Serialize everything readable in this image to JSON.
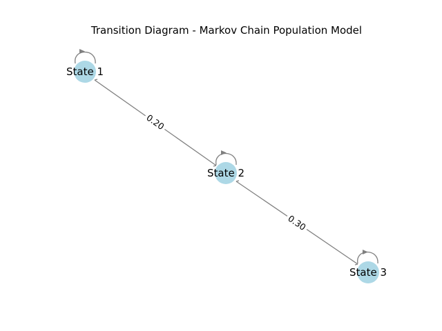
{
  "title": "Transition Diagram - Markov Chain Population Model",
  "colors": {
    "node_fill": "#add8e6",
    "edge": "#808080",
    "label_bg": "#ffffff"
  },
  "nodes": [
    {
      "id": "s1",
      "label": "State 1"
    },
    {
      "id": "s2",
      "label": "State 2"
    },
    {
      "id": "s3",
      "label": "State 3"
    }
  ],
  "edges": [
    {
      "from": "s1",
      "to": "s2",
      "label": "0.20"
    },
    {
      "from": "s2",
      "to": "s3",
      "label": "0.30"
    }
  ],
  "self_loops": [
    "s1",
    "s2",
    "s3"
  ]
}
